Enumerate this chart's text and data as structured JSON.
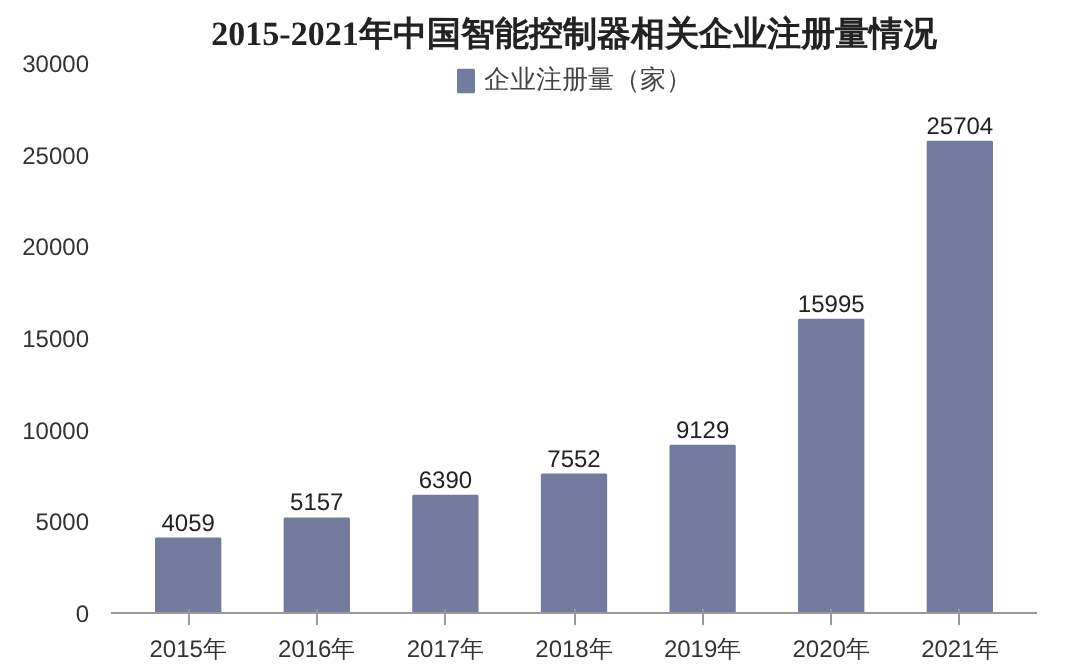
{
  "chart_data": {
    "type": "bar",
    "title": "2015-2021年中国智能控制器相关企业注册量情况",
    "categories": [
      "2015年",
      "2016年",
      "2017年",
      "2018年",
      "2019年",
      "2020年",
      "2021年"
    ],
    "series": [
      {
        "name": "企业注册量（家）",
        "color": "#737c9f",
        "values": [
          4059,
          5157,
          6390,
          7552,
          9129,
          15995,
          25704
        ]
      }
    ],
    "ylim": [
      0,
      30000
    ],
    "yticks": [
      0,
      5000,
      10000,
      15000,
      20000,
      25000,
      30000
    ],
    "data_labels": true,
    "legend": "top"
  }
}
